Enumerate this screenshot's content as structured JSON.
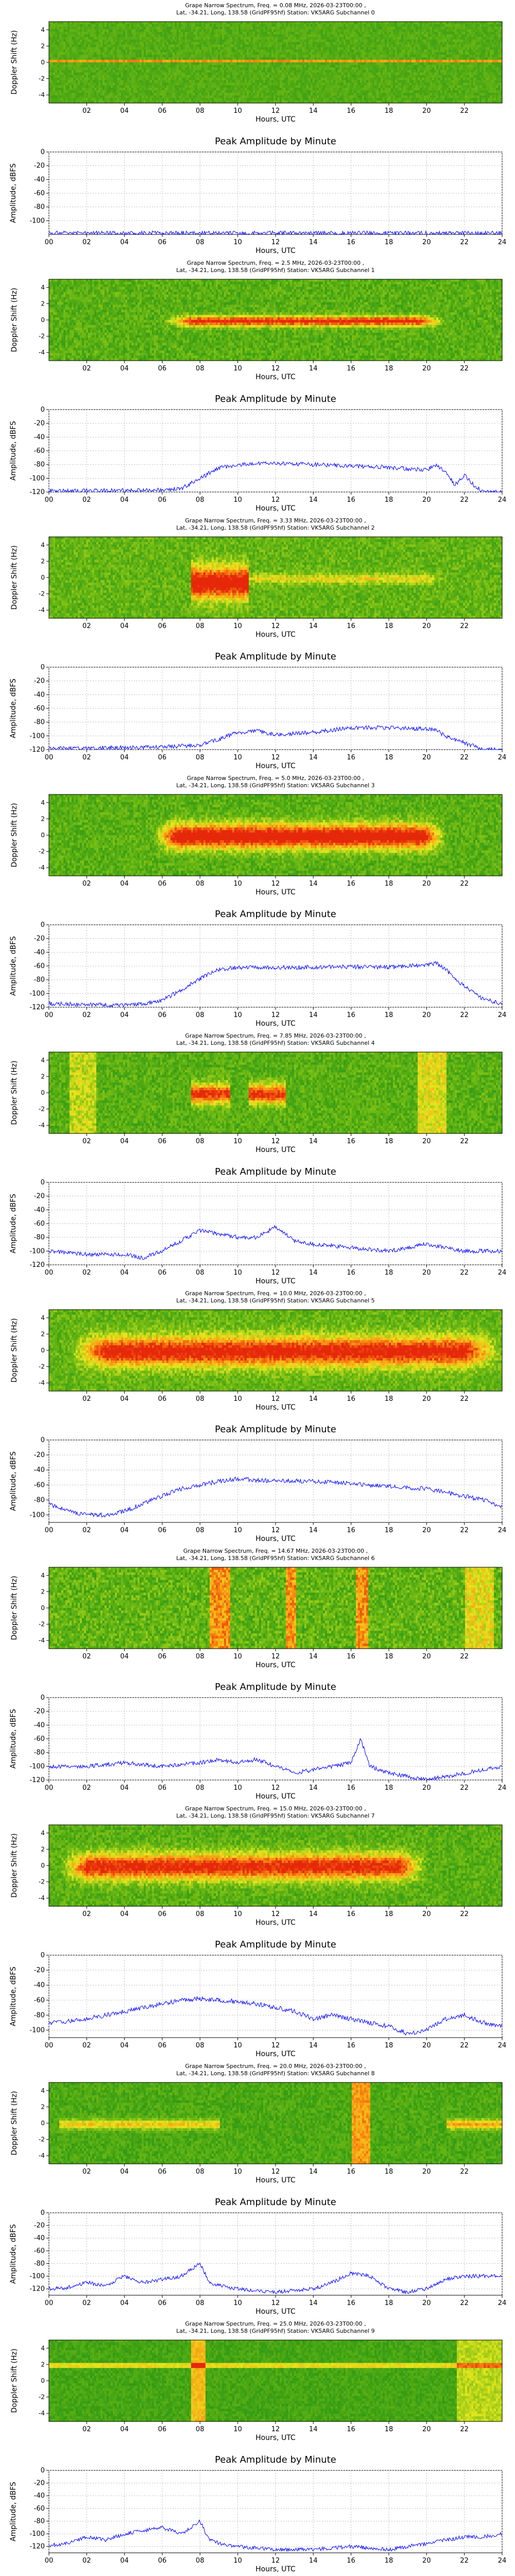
{
  "chart_data": [
    {
      "type": "heatmap",
      "title_line1": "Grape Narrow Spectrum, Freq. = 0.08 MHz, 2026-03-23T00:00 ,",
      "title_line2": "Lat, -34.21, Long, 138.58 (GridPF95hf) Station: VK5ARG Subchannel 0",
      "ylabel": "Doppler Shift (Hz)",
      "xlabel": "Hours, UTC",
      "xlim": [
        0,
        24
      ],
      "ylim": [
        -5,
        5
      ],
      "yticks": [
        "-4",
        "-2",
        "0",
        "2",
        "4"
      ],
      "xticks": [
        "02",
        "04",
        "06",
        "08",
        "10",
        "12",
        "14",
        "16",
        "18",
        "20",
        "22"
      ],
      "colorscale": "green-yellow-orange-red",
      "pattern": "carrier"
    },
    {
      "type": "line",
      "title": "Peak Amplitude by Minute",
      "ylabel": "Amplitude, dBFS",
      "xlabel": "Hours, UTC",
      "xlim": [
        0,
        24
      ],
      "ylim": [
        -120,
        0
      ],
      "yticks": [
        "0",
        "-20",
        "-40",
        "-60",
        "-80",
        "-100"
      ],
      "xticks": [
        "00",
        "02",
        "04",
        "06",
        "08",
        "10",
        "12",
        "14",
        "16",
        "18",
        "20",
        "22",
        "24"
      ],
      "x": [
        0,
        24
      ],
      "y": [
        -118,
        -118
      ],
      "color": "#0000ff"
    },
    {
      "type": "heatmap",
      "title_line1": "Grape Narrow Spectrum, Freq. = 2.5 MHz, 2026-03-23T00:00 ,",
      "title_line2": "Lat, -34.21, Long, 138.58 (GridPF95hf) Station: VK5ARG Subchannel 1",
      "ylabel": "Doppler Shift (Hz)",
      "xlabel": "Hours, UTC",
      "xlim": [
        0,
        24
      ],
      "ylim": [
        -5,
        5
      ],
      "yticks": [
        "-4",
        "-2",
        "0",
        "2",
        "4"
      ],
      "xticks": [
        "02",
        "04",
        "06",
        "08",
        "10",
        "12",
        "14",
        "16",
        "18",
        "20",
        "22"
      ],
      "colorscale": "green-yellow-orange-red",
      "pattern": "daybright"
    },
    {
      "type": "line",
      "title": "Peak Amplitude by Minute",
      "ylabel": "Amplitude, dBFS",
      "xlabel": "Hours, UTC",
      "xlim": [
        0,
        24
      ],
      "ylim": [
        -120,
        0
      ],
      "yticks": [
        "0",
        "-20",
        "-40",
        "-60",
        "-80",
        "-100",
        "-120"
      ],
      "xticks": [
        "00",
        "02",
        "04",
        "06",
        "08",
        "10",
        "12",
        "14",
        "16",
        "18",
        "20",
        "22",
        "24"
      ],
      "x": [
        0,
        4,
        6,
        7,
        8,
        9,
        10,
        12,
        14,
        16,
        18,
        19,
        20,
        20.5,
        21,
        21.5,
        22,
        22.5,
        23,
        24
      ],
      "y": [
        -118,
        -118,
        -117,
        -115,
        -100,
        -85,
        -80,
        -78,
        -80,
        -82,
        -84,
        -86,
        -88,
        -80,
        -90,
        -110,
        -95,
        -110,
        -120,
        -120
      ],
      "color": "#0000ff"
    },
    {
      "type": "heatmap",
      "title_line1": "Grape Narrow Spectrum, Freq. = 3.33 MHz, 2026-03-23T00:00 ,",
      "title_line2": "Lat, -34.21, Long, 138.58 (GridPF95hf) Station: VK5ARG Subchannel 2",
      "ylabel": "Doppler Shift (Hz)",
      "xlabel": "Hours, UTC",
      "xlim": [
        0,
        24
      ],
      "ylim": [
        -5,
        5
      ],
      "yticks": [
        "-4",
        "-2",
        "0",
        "2",
        "4"
      ],
      "xticks": [
        "02",
        "04",
        "06",
        "08",
        "10",
        "12",
        "14",
        "16",
        "18",
        "20",
        "22"
      ],
      "colorscale": "green-yellow-orange-red",
      "pattern": "morningblob"
    },
    {
      "type": "line",
      "title": "Peak Amplitude by Minute",
      "ylabel": "Amplitude, dBFS",
      "xlabel": "Hours, UTC",
      "xlim": [
        0,
        24
      ],
      "ylim": [
        -120,
        0
      ],
      "yticks": [
        "0",
        "-20",
        "-40",
        "-60",
        "-80",
        "-100",
        "-120"
      ],
      "xticks": [
        "00",
        "02",
        "04",
        "06",
        "08",
        "10",
        "12",
        "14",
        "16",
        "18",
        "20",
        "22",
        "24"
      ],
      "x": [
        0,
        5,
        7,
        8,
        9,
        10,
        11,
        12,
        14,
        16,
        18,
        20,
        20.5,
        21,
        22,
        23,
        24
      ],
      "y": [
        -118,
        -117,
        -115,
        -113,
        -105,
        -95,
        -93,
        -98,
        -95,
        -88,
        -88,
        -90,
        -92,
        -100,
        -110,
        -120,
        -120
      ],
      "color": "#0000ff"
    },
    {
      "type": "heatmap",
      "title_line1": "Grape Narrow Spectrum, Freq. = 5.0 MHz, 2026-03-23T00:00 ,",
      "title_line2": "Lat, -34.21, Long, 138.58 (GridPF95hf) Station: VK5ARG Subchannel 3",
      "ylabel": "Doppler Shift (Hz)",
      "xlabel": "Hours, UTC",
      "xlim": [
        0,
        24
      ],
      "ylim": [
        -5,
        5
      ],
      "yticks": [
        "-4",
        "-2",
        "0",
        "2",
        "4"
      ],
      "xticks": [
        "02",
        "04",
        "06",
        "08",
        "10",
        "12",
        "14",
        "16",
        "18",
        "20",
        "22"
      ],
      "colorscale": "green-yellow-orange-red",
      "pattern": "daystrong"
    },
    {
      "type": "line",
      "title": "Peak Amplitude by Minute",
      "ylabel": "Amplitude, dBFS",
      "xlabel": "Hours, UTC",
      "xlim": [
        0,
        24
      ],
      "ylim": [
        -120,
        0
      ],
      "yticks": [
        "0",
        "-20",
        "-40",
        "-60",
        "-80",
        "-100",
        "-120"
      ],
      "xticks": [
        "00",
        "02",
        "04",
        "06",
        "08",
        "10",
        "12",
        "14",
        "16",
        "18",
        "20",
        "22",
        "24"
      ],
      "x": [
        0,
        4,
        5,
        6,
        7,
        8,
        9,
        10,
        12,
        14,
        16,
        18,
        20,
        20.5,
        21,
        22,
        23,
        24
      ],
      "y": [
        -115,
        -117,
        -115,
        -110,
        -95,
        -78,
        -65,
        -62,
        -62,
        -62,
        -61,
        -62,
        -58,
        -56,
        -65,
        -90,
        -108,
        -115
      ],
      "color": "#0000ff"
    },
    {
      "type": "heatmap",
      "title_line1": "Grape Narrow Spectrum, Freq. = 7.85 MHz, 2026-03-23T00:00 ,",
      "title_line2": "Lat, -34.21, Long, 138.58 (GridPF95hf) Station: VK5ARG Subchannel 4",
      "ylabel": "Doppler Shift (Hz)",
      "xlabel": "Hours, UTC",
      "xlim": [
        0,
        24
      ],
      "ylim": [
        -5,
        5
      ],
      "yticks": [
        "-4",
        "-2",
        "0",
        "2",
        "4"
      ],
      "xticks": [
        "02",
        "04",
        "06",
        "08",
        "10",
        "12",
        "14",
        "16",
        "18",
        "20",
        "22"
      ],
      "colorscale": "green-yellow-orange-red",
      "pattern": "sparse7"
    },
    {
      "type": "line",
      "title": "Peak Amplitude by Minute",
      "ylabel": "Amplitude, dBFS",
      "xlabel": "Hours, UTC",
      "xlim": [
        0,
        24
      ],
      "ylim": [
        -120,
        0
      ],
      "yticks": [
        "0",
        "-20",
        "-40",
        "-60",
        "-80",
        "-100",
        "-120"
      ],
      "xticks": [
        "00",
        "02",
        "04",
        "06",
        "08",
        "10",
        "12",
        "14",
        "16",
        "18",
        "20",
        "22",
        "24"
      ],
      "x": [
        0,
        2,
        4,
        5,
        6,
        7,
        8,
        9,
        10,
        11,
        12,
        13,
        14,
        16,
        18,
        20,
        21,
        22,
        24
      ],
      "y": [
        -100,
        -105,
        -105,
        -110,
        -100,
        -85,
        -70,
        -75,
        -80,
        -80,
        -65,
        -85,
        -90,
        -95,
        -100,
        -90,
        -95,
        -100,
        -100
      ],
      "color": "#0000ff"
    },
    {
      "type": "heatmap",
      "title_line1": "Grape Narrow Spectrum, Freq. = 10.0 MHz, 2026-03-23T00:00 ,",
      "title_line2": "Lat, -34.21, Long, 138.58 (GridPF95hf) Station: VK5ARG Subchannel 5",
      "ylabel": "Doppler Shift (Hz)",
      "xlabel": "Hours, UTC",
      "xlim": [
        0,
        24
      ],
      "ylim": [
        -5,
        5
      ],
      "yticks": [
        "-4",
        "-2",
        "0",
        "2",
        "4"
      ],
      "xticks": [
        "02",
        "04",
        "06",
        "08",
        "10",
        "12",
        "14",
        "16",
        "18",
        "20",
        "22"
      ],
      "colorscale": "green-yellow-orange-red",
      "pattern": "daystrong10"
    },
    {
      "type": "line",
      "title": "Peak Amplitude by Minute",
      "ylabel": "Amplitude, dBFS",
      "xlabel": "Hours, UTC",
      "xlim": [
        0,
        24
      ],
      "ylim": [
        -110,
        0
      ],
      "yticks": [
        "0",
        "-20",
        "-40",
        "-60",
        "-80",
        "-100"
      ],
      "xticks": [
        "00",
        "02",
        "04",
        "06",
        "08",
        "10",
        "12",
        "14",
        "16",
        "18",
        "20",
        "22",
        "24"
      ],
      "x": [
        0,
        1,
        2,
        3,
        4,
        5,
        6,
        7,
        8,
        9,
        10,
        12,
        14,
        16,
        18,
        20,
        21,
        22,
        23,
        24
      ],
      "y": [
        -85,
        -95,
        -100,
        -100,
        -95,
        -85,
        -75,
        -65,
        -60,
        -55,
        -52,
        -55,
        -55,
        -58,
        -62,
        -65,
        -70,
        -75,
        -80,
        -90
      ],
      "color": "#0000ff"
    },
    {
      "type": "heatmap",
      "title_line1": "Grape Narrow Spectrum, Freq. = 14.67 MHz, 2026-03-23T00:00 ,",
      "title_line2": "Lat, -34.21, Long, 138.58 (GridPF95hf) Station: VK5ARG Subchannel 6",
      "ylabel": "Doppler Shift (Hz)",
      "xlabel": "Hours, UTC",
      "xlim": [
        0,
        24
      ],
      "ylim": [
        -5,
        5
      ],
      "yticks": [
        "-4",
        "-2",
        "0",
        "2",
        "4"
      ],
      "xticks": [
        "02",
        "04",
        "06",
        "08",
        "10",
        "12",
        "14",
        "16",
        "18",
        "20",
        "22"
      ],
      "colorscale": "green-yellow-orange-red",
      "pattern": "streaky"
    },
    {
      "type": "line",
      "title": "Peak Amplitude by Minute",
      "ylabel": "Amplitude, dBFS",
      "xlabel": "Hours, UTC",
      "xlim": [
        0,
        24
      ],
      "ylim": [
        -120,
        0
      ],
      "yticks": [
        "0",
        "-20",
        "-40",
        "-60",
        "-80",
        "-100",
        "-120"
      ],
      "xticks": [
        "00",
        "02",
        "04",
        "06",
        "08",
        "10",
        "12",
        "14",
        "16",
        "18",
        "20",
        "22",
        "24"
      ],
      "x": [
        0,
        2,
        4,
        6,
        8,
        9,
        10,
        11,
        12,
        13,
        14,
        15,
        16,
        16.5,
        17,
        18,
        19,
        20,
        21,
        22,
        23,
        24
      ],
      "y": [
        -100,
        -100,
        -95,
        -100,
        -95,
        -90,
        -95,
        -90,
        -100,
        -110,
        -105,
        -100,
        -95,
        -60,
        -100,
        -110,
        -115,
        -120,
        -115,
        -110,
        -105,
        -100
      ],
      "color": "#0000ff"
    },
    {
      "type": "heatmap",
      "title_line1": "Grape Narrow Spectrum, Freq. = 15.0 MHz, 2026-03-23T00:00 ,",
      "title_line2": "Lat, -34.21, Long, 138.58 (GridPF95hf) Station: VK5ARG Subchannel 7",
      "ylabel": "Doppler Shift (Hz)",
      "xlabel": "Hours, UTC",
      "xlim": [
        0,
        24
      ],
      "ylim": [
        -5,
        5
      ],
      "yticks": [
        "-4",
        "-2",
        "0",
        "2",
        "4"
      ],
      "xticks": [
        "02",
        "04",
        "06",
        "08",
        "10",
        "12",
        "14",
        "16",
        "18",
        "20",
        "22"
      ],
      "colorscale": "green-yellow-orange-red",
      "pattern": "day15"
    },
    {
      "type": "line",
      "title": "Peak Amplitude by Minute",
      "ylabel": "Amplitude, dBFS",
      "xlabel": "Hours, UTC",
      "xlim": [
        0,
        24
      ],
      "ylim": [
        -110,
        0
      ],
      "yticks": [
        "0",
        "-20",
        "-40",
        "-60",
        "-80",
        "-100"
      ],
      "xticks": [
        "00",
        "02",
        "04",
        "06",
        "08",
        "10",
        "12",
        "14",
        "16",
        "18",
        "20",
        "22",
        "24"
      ],
      "x": [
        0,
        1,
        2,
        3,
        4,
        5,
        6,
        7,
        8,
        9,
        10,
        11,
        12,
        13,
        14,
        15,
        16,
        17,
        18,
        19,
        20,
        21,
        22,
        23,
        24
      ],
      "y": [
        -90,
        -88,
        -85,
        -80,
        -75,
        -70,
        -65,
        -60,
        -58,
        -60,
        -62,
        -65,
        -70,
        -75,
        -85,
        -80,
        -85,
        -90,
        -95,
        -105,
        -100,
        -85,
        -80,
        -90,
        -95
      ],
      "color": "#0000ff"
    },
    {
      "type": "heatmap",
      "title_line1": "Grape Narrow Spectrum, Freq. = 20.0 MHz, 2026-03-23T00:00 ,",
      "title_line2": "Lat, -34.21, Long, 138.58 (GridPF95hf) Station: VK5ARG Subchannel 8",
      "ylabel": "Doppler Shift (Hz)",
      "xlabel": "Hours, UTC",
      "xlim": [
        0,
        24
      ],
      "ylim": [
        -5,
        5
      ],
      "yticks": [
        "-4",
        "-2",
        "0",
        "2",
        "4"
      ],
      "xticks": [
        "02",
        "04",
        "06",
        "08",
        "10",
        "12",
        "14",
        "16",
        "18",
        "20",
        "22"
      ],
      "colorscale": "green-yellow-orange-red",
      "pattern": "sparse20"
    },
    {
      "type": "line",
      "title": "Peak Amplitude by Minute",
      "ylabel": "Amplitude, dBFS",
      "xlabel": "Hours, UTC",
      "xlim": [
        0,
        24
      ],
      "ylim": [
        -130,
        0
      ],
      "yticks": [
        "0",
        "-20",
        "-40",
        "-60",
        "-80",
        "-100",
        "-120"
      ],
      "xticks": [
        "00",
        "02",
        "04",
        "06",
        "08",
        "10",
        "12",
        "14",
        "16",
        "18",
        "20",
        "22",
        "24"
      ],
      "x": [
        0,
        1,
        2,
        3,
        4,
        5,
        6,
        7,
        8,
        8.5,
        9,
        10,
        12,
        14,
        15,
        16,
        17,
        18,
        19,
        20,
        21,
        22,
        23,
        24
      ],
      "y": [
        -120,
        -118,
        -110,
        -115,
        -100,
        -110,
        -105,
        -100,
        -80,
        -110,
        -115,
        -120,
        -125,
        -120,
        -110,
        -95,
        -100,
        -120,
        -125,
        -120,
        -105,
        -100,
        -100,
        -100
      ],
      "color": "#0000ff"
    },
    {
      "type": "heatmap",
      "title_line1": "Grape Narrow Spectrum, Freq. = 25.0 MHz, 2026-03-23T00:00 ,",
      "title_line2": "Lat, -34.21, Long, 138.58 (GridPF95hf) Station: VK5ARG Subchannel 9",
      "ylabel": "Doppler Shift (Hz)",
      "xlabel": "Hours, UTC",
      "xlim": [
        0,
        24
      ],
      "ylim": [
        -5,
        5
      ],
      "yticks": [
        "-4",
        "-2",
        "0",
        "2",
        "4"
      ],
      "xticks": [
        "02",
        "04",
        "06",
        "08",
        "10",
        "12",
        "14",
        "16",
        "18",
        "20",
        "22"
      ],
      "colorscale": "green-yellow-orange-red",
      "pattern": "sparse25"
    },
    {
      "type": "line",
      "title": "Peak Amplitude by Minute",
      "ylabel": "Amplitude, dBFS",
      "xlabel": "Hours, UTC",
      "xlim": [
        0,
        24
      ],
      "ylim": [
        -130,
        0
      ],
      "yticks": [
        "0",
        "-20",
        "-40",
        "-60",
        "-80",
        "-100",
        "-120"
      ],
      "xticks": [
        "00",
        "02",
        "04",
        "06",
        "08",
        "10",
        "12",
        "14",
        "16",
        "18",
        "20",
        "22",
        "24"
      ],
      "x": [
        0,
        1,
        2,
        3,
        4,
        5,
        6,
        7,
        8,
        8.5,
        9,
        10,
        12,
        14,
        16,
        18,
        19,
        20,
        21,
        22,
        23,
        24
      ],
      "y": [
        -118,
        -115,
        -105,
        -110,
        -100,
        -95,
        -90,
        -100,
        -80,
        -110,
        -115,
        -120,
        -125,
        -125,
        -120,
        -125,
        -120,
        -115,
        -110,
        -105,
        -105,
        -100
      ],
      "color": "#0000ff"
    }
  ]
}
